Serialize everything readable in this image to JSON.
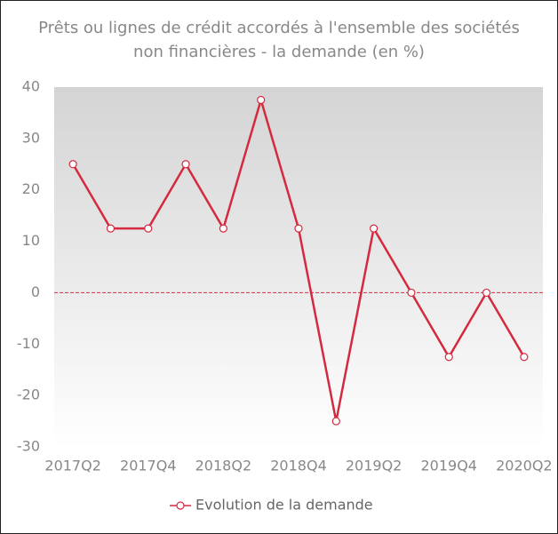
{
  "chart_data": {
    "type": "line",
    "title": [
      "Prêts ou lignes de crédit accordés à l'ensemble des sociétés",
      "non financières - la demande (en %)"
    ],
    "categories": [
      "2017Q2",
      null,
      "2017Q4",
      null,
      "2018Q2",
      null,
      "2018Q4",
      null,
      "2019Q2",
      null,
      "2019Q4",
      null,
      "2020Q2"
    ],
    "series": [
      {
        "name": "Evolution de la demande",
        "color": "#d42a40",
        "values": [
          25,
          12.5,
          12.5,
          25,
          12.5,
          37.5,
          12.5,
          -25,
          12.5,
          0,
          -12.5,
          0,
          -12.5
        ]
      }
    ],
    "ylim": [
      -30,
      40
    ],
    "yticks": [
      -30,
      -20,
      -10,
      0,
      10,
      20,
      30,
      40
    ],
    "grid": false,
    "dashed_zero_line": true,
    "legend": "bottom"
  }
}
